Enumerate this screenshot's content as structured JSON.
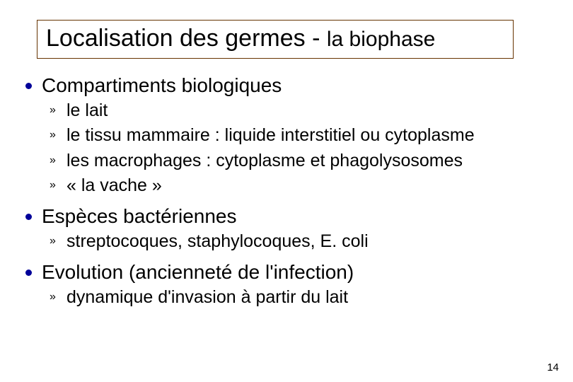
{
  "colors": {
    "bullet": "#000099",
    "title_border": "#663300",
    "text": "#000000",
    "background": "#ffffff"
  },
  "title": {
    "main": "Localisation des germes",
    "separator": " - ",
    "sub": "la biophase"
  },
  "sections": [
    {
      "heading": "Compartiments biologiques",
      "items": [
        "le lait",
        "le tissu mammaire : liquide interstitiel ou cytoplasme",
        "les macrophages : cytoplasme et phagolysosomes",
        "« la vache »"
      ]
    },
    {
      "heading": "Espèces bactériennes",
      "items": [
        "streptocoques, staphylocoques, E. coli"
      ]
    },
    {
      "heading": "Evolution (ancienneté de l'infection)",
      "items": [
        "dynamique d'invasion à partir du lait"
      ]
    }
  ],
  "subbullet_marker": "»",
  "page_number": "14"
}
